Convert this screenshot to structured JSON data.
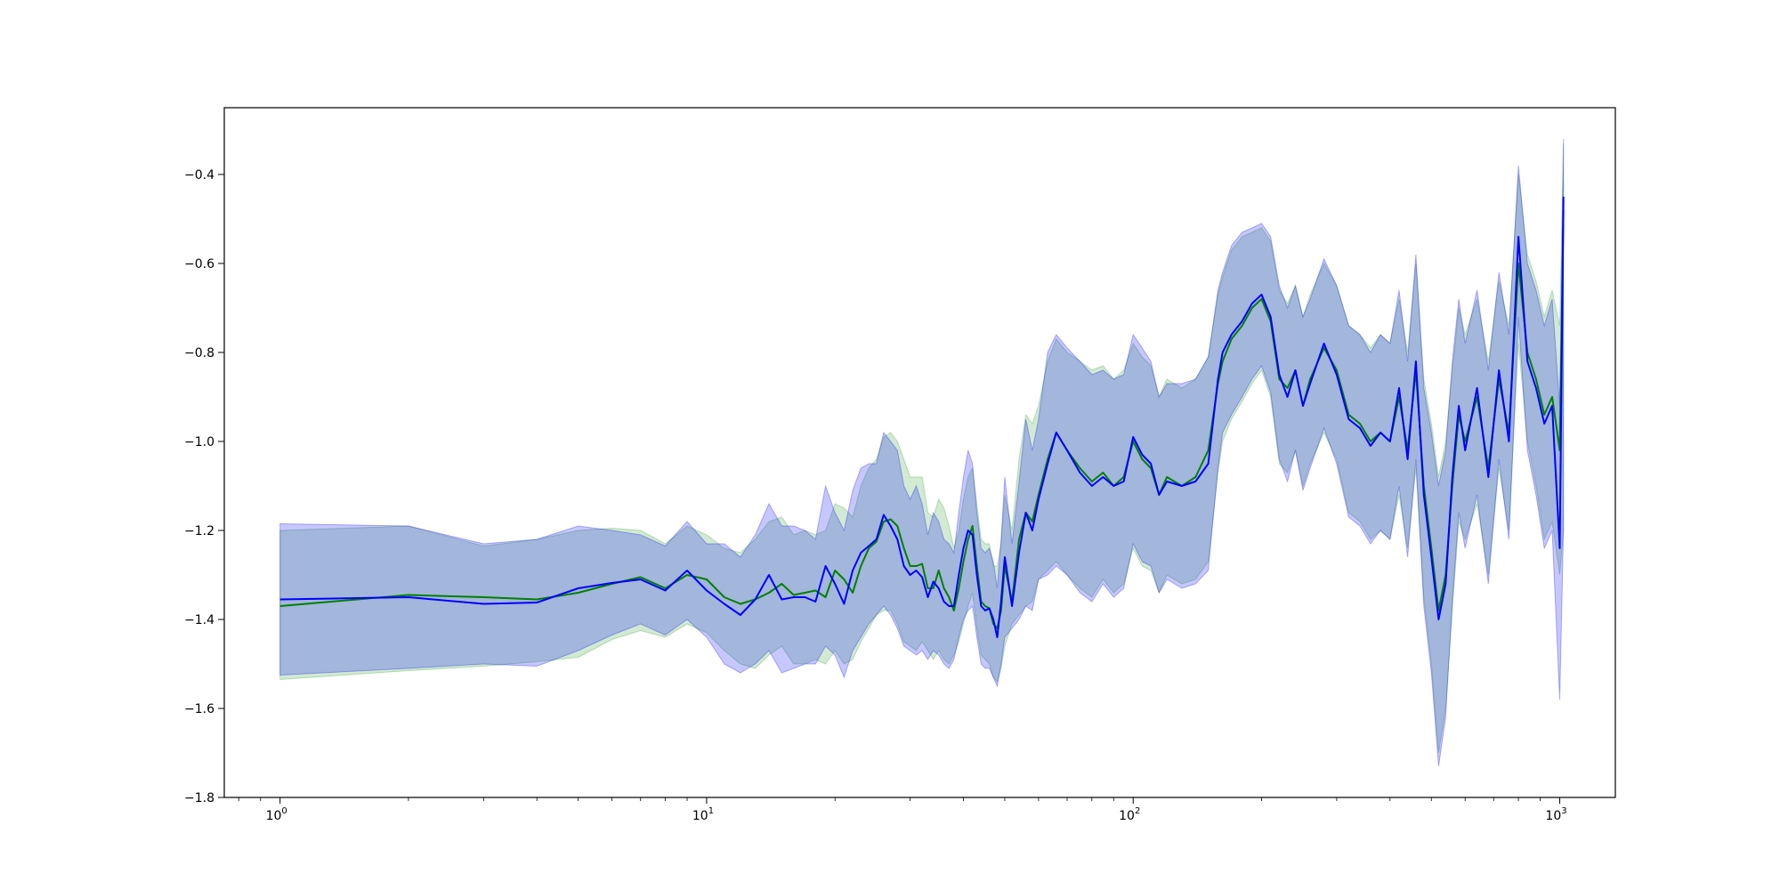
{
  "chart_data": {
    "type": "line",
    "title": "",
    "xlabel": "",
    "ylabel": "",
    "xscale": "log",
    "xlim": [
      0.74,
      1350
    ],
    "ylim": [
      -1.8,
      -0.25
    ],
    "grid": false,
    "legend": "none",
    "x_ticks": [
      {
        "base": "10",
        "exp": "0",
        "value": 1
      },
      {
        "base": "10",
        "exp": "1",
        "value": 10
      },
      {
        "base": "10",
        "exp": "2",
        "value": 100
      },
      {
        "base": "10",
        "exp": "3",
        "value": 1000
      }
    ],
    "y_ticks": [
      {
        "label": "−0.4",
        "value": -0.4
      },
      {
        "label": "−0.6",
        "value": -0.6
      },
      {
        "label": "−0.8",
        "value": -0.8
      },
      {
        "label": "−1.0",
        "value": -1.0
      },
      {
        "label": "−1.2",
        "value": -1.2
      },
      {
        "label": "−1.4",
        "value": -1.4
      },
      {
        "label": "−1.6",
        "value": -1.6
      },
      {
        "label": "−1.8",
        "value": -1.8
      }
    ],
    "series": [
      {
        "color": "#008000",
        "band_color": "#2ca02c",
        "x": [
          1,
          2,
          3,
          4,
          5,
          6,
          7,
          8,
          9,
          10,
          11,
          12,
          13,
          14,
          15,
          16,
          17,
          18,
          19,
          20,
          21,
          22,
          23,
          24,
          25,
          26,
          27,
          28,
          29,
          30,
          31,
          32,
          33,
          34,
          35,
          36,
          37,
          38,
          39,
          40,
          41,
          42,
          43,
          44,
          45,
          46,
          47,
          48,
          49,
          50,
          52,
          54,
          56,
          58,
          60,
          63,
          66,
          70,
          75,
          80,
          85,
          90,
          95,
          100,
          105,
          110,
          115,
          120,
          130,
          140,
          150,
          158,
          162,
          170,
          180,
          190,
          200,
          210,
          220,
          230,
          240,
          250,
          260,
          280,
          300,
          320,
          340,
          360,
          380,
          400,
          420,
          440,
          460,
          480,
          500,
          520,
          540,
          560,
          580,
          600,
          640,
          680,
          720,
          760,
          800,
          840,
          880,
          920,
          960,
          1000,
          1020
        ],
        "y": [
          -1.37,
          -1.345,
          -1.35,
          -1.355,
          -1.34,
          -1.32,
          -1.305,
          -1.33,
          -1.3,
          -1.31,
          -1.35,
          -1.365,
          -1.355,
          -1.34,
          -1.32,
          -1.345,
          -1.34,
          -1.335,
          -1.35,
          -1.29,
          -1.31,
          -1.34,
          -1.28,
          -1.24,
          -1.225,
          -1.18,
          -1.175,
          -1.19,
          -1.24,
          -1.28,
          -1.28,
          -1.275,
          -1.33,
          -1.33,
          -1.29,
          -1.33,
          -1.35,
          -1.38,
          -1.33,
          -1.27,
          -1.22,
          -1.19,
          -1.28,
          -1.36,
          -1.37,
          -1.375,
          -1.41,
          -1.42,
          -1.38,
          -1.28,
          -1.36,
          -1.22,
          -1.16,
          -1.18,
          -1.12,
          -1.04,
          -0.98,
          -1.02,
          -1.06,
          -1.09,
          -1.07,
          -1.1,
          -1.08,
          -1.0,
          -1.04,
          -1.06,
          -1.12,
          -1.08,
          -1.1,
          -1.08,
          -1.02,
          -0.87,
          -0.82,
          -0.77,
          -0.74,
          -0.7,
          -0.68,
          -0.73,
          -0.86,
          -0.88,
          -0.84,
          -0.92,
          -0.86,
          -0.79,
          -0.84,
          -0.94,
          -0.96,
          -1.0,
          -0.98,
          -1.0,
          -0.9,
          -1.02,
          -0.84,
          -1.1,
          -1.24,
          -1.38,
          -1.3,
          -1.1,
          -0.94,
          -1.0,
          -0.9,
          -1.06,
          -0.86,
          -0.98,
          -0.6,
          -0.8,
          -0.86,
          -0.94,
          -0.9,
          -1.02,
          -0.48
        ],
        "lower": [
          -1.535,
          -1.515,
          -1.505,
          -1.495,
          -1.485,
          -1.445,
          -1.425,
          -1.44,
          -1.41,
          -1.43,
          -1.47,
          -1.5,
          -1.51,
          -1.48,
          -1.46,
          -1.5,
          -1.5,
          -1.49,
          -1.5,
          -1.47,
          -1.5,
          -1.49,
          -1.45,
          -1.42,
          -1.39,
          -1.38,
          -1.38,
          -1.41,
          -1.45,
          -1.46,
          -1.47,
          -1.45,
          -1.47,
          -1.49,
          -1.47,
          -1.49,
          -1.5,
          -1.48,
          -1.45,
          -1.41,
          -1.37,
          -1.34,
          -1.42,
          -1.48,
          -1.49,
          -1.5,
          -1.53,
          -1.54,
          -1.51,
          -1.46,
          -1.41,
          -1.39,
          -1.37,
          -1.36,
          -1.31,
          -1.29,
          -1.27,
          -1.3,
          -1.33,
          -1.35,
          -1.31,
          -1.34,
          -1.32,
          -1.24,
          -1.28,
          -1.29,
          -1.34,
          -1.3,
          -1.32,
          -1.31,
          -1.27,
          -1.07,
          -1.0,
          -0.95,
          -0.91,
          -0.87,
          -0.84,
          -0.9,
          -1.05,
          -1.07,
          -1.02,
          -1.1,
          -1.05,
          -0.98,
          -1.04,
          -1.16,
          -1.18,
          -1.22,
          -1.2,
          -1.22,
          -1.12,
          -1.24,
          -1.06,
          -1.35,
          -1.5,
          -1.7,
          -1.6,
          -1.38,
          -1.18,
          -1.22,
          -1.14,
          -1.3,
          -1.06,
          -1.2,
          -0.78,
          -1.0,
          -1.1,
          -1.22,
          -1.18,
          -1.3,
          -1.2
        ],
        "upper": [
          -1.2,
          -1.19,
          -1.235,
          -1.22,
          -1.2,
          -1.195,
          -1.2,
          -1.23,
          -1.19,
          -1.21,
          -1.24,
          -1.25,
          -1.22,
          -1.18,
          -1.17,
          -1.21,
          -1.2,
          -1.21,
          -1.2,
          -1.14,
          -1.15,
          -1.17,
          -1.1,
          -1.06,
          -1.04,
          -0.99,
          -0.98,
          -1.0,
          -1.04,
          -1.08,
          -1.08,
          -1.08,
          -1.16,
          -1.17,
          -1.13,
          -1.15,
          -1.19,
          -1.24,
          -1.2,
          -1.13,
          -1.08,
          -1.06,
          -1.14,
          -1.22,
          -1.23,
          -1.23,
          -1.28,
          -1.28,
          -1.23,
          -1.12,
          -1.2,
          -1.04,
          -0.94,
          -0.96,
          -0.92,
          -0.82,
          -0.77,
          -0.8,
          -0.82,
          -0.84,
          -0.83,
          -0.86,
          -0.84,
          -0.78,
          -0.81,
          -0.83,
          -0.9,
          -0.86,
          -0.88,
          -0.86,
          -0.81,
          -0.67,
          -0.63,
          -0.57,
          -0.54,
          -0.53,
          -0.52,
          -0.55,
          -0.66,
          -0.69,
          -0.65,
          -0.72,
          -0.67,
          -0.6,
          -0.65,
          -0.74,
          -0.76,
          -0.79,
          -0.76,
          -0.78,
          -0.68,
          -0.8,
          -0.6,
          -0.86,
          -0.96,
          -1.08,
          -1.0,
          -0.84,
          -0.7,
          -0.76,
          -0.68,
          -0.82,
          -0.64,
          -0.74,
          -0.4,
          -0.58,
          -0.64,
          -0.72,
          -0.66,
          -0.74,
          -0.33
        ]
      },
      {
        "color": "#0000ff",
        "band_color": "#0000ff",
        "x": [
          1,
          2,
          3,
          4,
          5,
          6,
          7,
          8,
          9,
          10,
          11,
          12,
          13,
          14,
          15,
          16,
          17,
          18,
          19,
          20,
          21,
          22,
          23,
          24,
          25,
          26,
          27,
          28,
          29,
          30,
          31,
          32,
          33,
          34,
          35,
          36,
          37,
          38,
          39,
          40,
          41,
          42,
          43,
          44,
          45,
          46,
          47,
          48,
          49,
          50,
          52,
          54,
          56,
          58,
          60,
          63,
          66,
          70,
          75,
          80,
          85,
          90,
          95,
          100,
          105,
          110,
          115,
          120,
          130,
          140,
          150,
          158,
          162,
          170,
          180,
          190,
          200,
          210,
          220,
          230,
          240,
          250,
          260,
          280,
          300,
          320,
          340,
          360,
          380,
          400,
          420,
          440,
          460,
          480,
          500,
          520,
          540,
          560,
          580,
          600,
          640,
          680,
          720,
          760,
          800,
          840,
          880,
          920,
          960,
          1000,
          1020
        ],
        "y": [
          -1.355,
          -1.35,
          -1.365,
          -1.362,
          -1.33,
          -1.318,
          -1.31,
          -1.335,
          -1.29,
          -1.335,
          -1.365,
          -1.39,
          -1.355,
          -1.3,
          -1.355,
          -1.35,
          -1.35,
          -1.36,
          -1.28,
          -1.32,
          -1.365,
          -1.29,
          -1.25,
          -1.235,
          -1.22,
          -1.165,
          -1.19,
          -1.22,
          -1.28,
          -1.3,
          -1.29,
          -1.305,
          -1.35,
          -1.315,
          -1.33,
          -1.36,
          -1.37,
          -1.37,
          -1.3,
          -1.24,
          -1.2,
          -1.21,
          -1.3,
          -1.37,
          -1.38,
          -1.375,
          -1.4,
          -1.44,
          -1.36,
          -1.26,
          -1.37,
          -1.25,
          -1.16,
          -1.2,
          -1.13,
          -1.05,
          -0.98,
          -1.02,
          -1.07,
          -1.1,
          -1.08,
          -1.1,
          -1.09,
          -0.99,
          -1.03,
          -1.05,
          -1.12,
          -1.09,
          -1.1,
          -1.09,
          -1.05,
          -0.86,
          -0.8,
          -0.76,
          -0.73,
          -0.69,
          -0.67,
          -0.72,
          -0.85,
          -0.9,
          -0.84,
          -0.92,
          -0.87,
          -0.78,
          -0.85,
          -0.95,
          -0.97,
          -1.01,
          -0.98,
          -1.0,
          -0.88,
          -1.04,
          -0.82,
          -1.12,
          -1.26,
          -1.4,
          -1.32,
          -1.08,
          -0.92,
          -1.02,
          -0.88,
          -1.08,
          -0.84,
          -1.0,
          -0.54,
          -0.82,
          -0.88,
          -0.96,
          -0.92,
          -1.24,
          -0.45
        ],
        "lower": [
          -1.525,
          -1.51,
          -1.5,
          -1.505,
          -1.47,
          -1.435,
          -1.41,
          -1.435,
          -1.4,
          -1.44,
          -1.5,
          -1.52,
          -1.5,
          -1.47,
          -1.52,
          -1.51,
          -1.5,
          -1.5,
          -1.46,
          -1.48,
          -1.53,
          -1.47,
          -1.44,
          -1.41,
          -1.39,
          -1.37,
          -1.39,
          -1.42,
          -1.46,
          -1.47,
          -1.48,
          -1.47,
          -1.49,
          -1.47,
          -1.48,
          -1.5,
          -1.51,
          -1.49,
          -1.44,
          -1.4,
          -1.38,
          -1.37,
          -1.44,
          -1.5,
          -1.51,
          -1.51,
          -1.53,
          -1.55,
          -1.5,
          -1.44,
          -1.42,
          -1.4,
          -1.37,
          -1.38,
          -1.31,
          -1.3,
          -1.28,
          -1.3,
          -1.34,
          -1.36,
          -1.32,
          -1.35,
          -1.33,
          -1.23,
          -1.27,
          -1.28,
          -1.34,
          -1.31,
          -1.33,
          -1.32,
          -1.29,
          -1.06,
          -0.98,
          -0.94,
          -0.9,
          -0.86,
          -0.83,
          -0.89,
          -1.04,
          -1.09,
          -1.02,
          -1.11,
          -1.06,
          -0.97,
          -1.05,
          -1.17,
          -1.19,
          -1.23,
          -1.2,
          -1.22,
          -1.1,
          -1.26,
          -1.04,
          -1.37,
          -1.52,
          -1.73,
          -1.62,
          -1.36,
          -1.16,
          -1.24,
          -1.12,
          -1.32,
          -1.04,
          -1.22,
          -0.72,
          -1.02,
          -1.12,
          -1.24,
          -1.2,
          -1.58,
          -1.2
        ],
        "upper": [
          -1.185,
          -1.19,
          -1.23,
          -1.22,
          -1.19,
          -1.2,
          -1.21,
          -1.235,
          -1.18,
          -1.23,
          -1.23,
          -1.26,
          -1.21,
          -1.14,
          -1.19,
          -1.19,
          -1.2,
          -1.22,
          -1.1,
          -1.16,
          -1.2,
          -1.11,
          -1.06,
          -1.05,
          -1.05,
          -0.98,
          -1.0,
          -1.02,
          -1.1,
          -1.13,
          -1.1,
          -1.14,
          -1.21,
          -1.16,
          -1.18,
          -1.22,
          -1.23,
          -1.25,
          -1.16,
          -1.08,
          -1.02,
          -1.05,
          -1.16,
          -1.24,
          -1.25,
          -1.24,
          -1.27,
          -1.33,
          -1.22,
          -1.08,
          -1.23,
          -1.09,
          -0.95,
          -1.02,
          -0.95,
          -0.8,
          -0.76,
          -0.79,
          -0.82,
          -0.85,
          -0.84,
          -0.86,
          -0.85,
          -0.76,
          -0.79,
          -0.82,
          -0.9,
          -0.87,
          -0.87,
          -0.86,
          -0.81,
          -0.66,
          -0.62,
          -0.56,
          -0.53,
          -0.52,
          -0.51,
          -0.54,
          -0.65,
          -0.7,
          -0.65,
          -0.72,
          -0.68,
          -0.59,
          -0.65,
          -0.74,
          -0.76,
          -0.8,
          -0.76,
          -0.78,
          -0.66,
          -0.82,
          -0.58,
          -0.88,
          -0.98,
          -1.1,
          -1.02,
          -0.82,
          -0.68,
          -0.78,
          -0.66,
          -0.84,
          -0.62,
          -0.76,
          -0.38,
          -0.6,
          -0.66,
          -0.74,
          -0.68,
          -0.92,
          -0.32
        ]
      }
    ]
  }
}
